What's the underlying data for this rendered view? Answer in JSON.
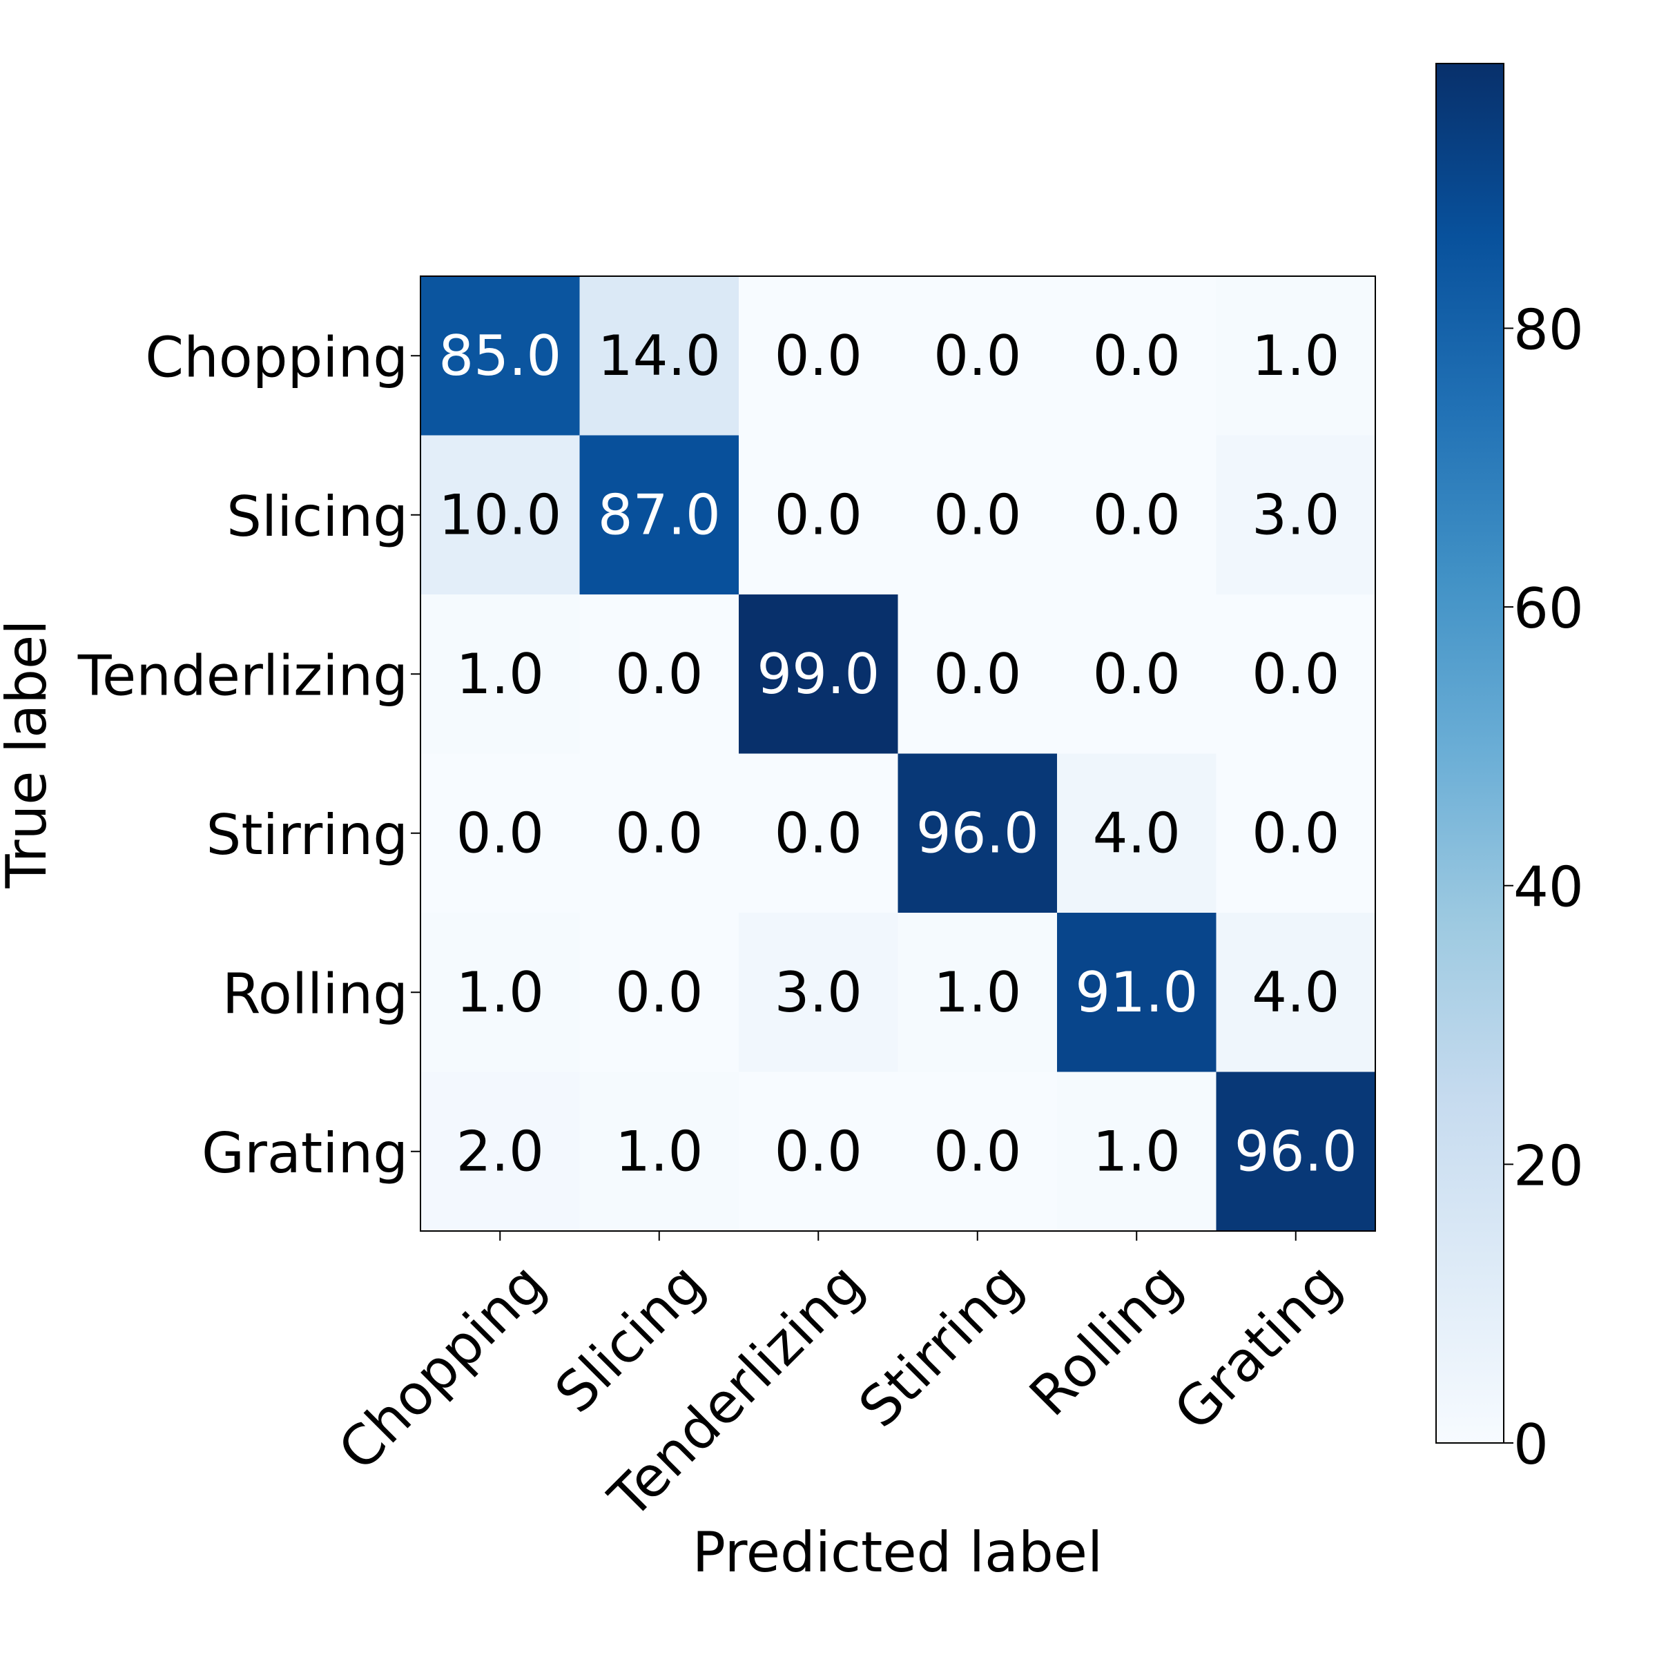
{
  "chart_data": {
    "type": "heatmap",
    "title": "",
    "xlabel": "Predicted label",
    "ylabel": "True label",
    "x_categories": [
      "Chopping",
      "Slicing",
      "Tenderlizing",
      "Stirring",
      "Rolling",
      "Grating"
    ],
    "y_categories": [
      "Chopping",
      "Slicing",
      "Tenderlizing",
      "Stirring",
      "Rolling",
      "Grating"
    ],
    "matrix": [
      [
        85.0,
        14.0,
        0.0,
        0.0,
        0.0,
        1.0
      ],
      [
        10.0,
        87.0,
        0.0,
        0.0,
        0.0,
        3.0
      ],
      [
        1.0,
        0.0,
        99.0,
        0.0,
        0.0,
        0.0
      ],
      [
        0.0,
        0.0,
        0.0,
        96.0,
        4.0,
        0.0
      ],
      [
        1.0,
        0.0,
        3.0,
        1.0,
        91.0,
        4.0
      ],
      [
        2.0,
        1.0,
        0.0,
        0.0,
        1.0,
        96.0
      ]
    ],
    "colorbar": {
      "colormap": "Blues",
      "range": [
        0,
        99
      ],
      "ticks": [
        0,
        20,
        40,
        60,
        80
      ]
    },
    "text_colors": {
      "light": "#ffffff",
      "dark": "#000000"
    },
    "grid": false
  }
}
